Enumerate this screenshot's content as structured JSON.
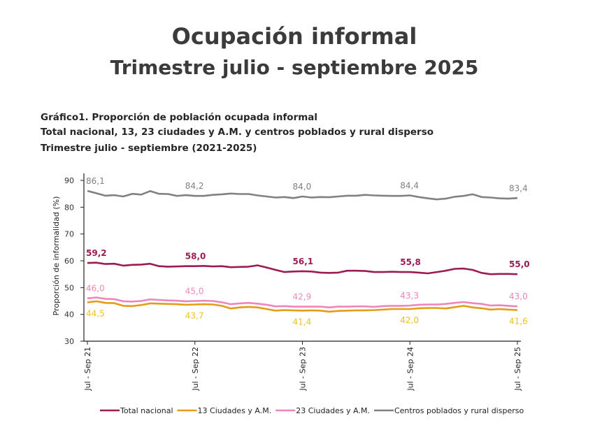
{
  "header": {
    "title": "Ocupación informal",
    "subtitle": "Trimestre julio - septiembre 2025"
  },
  "chart_data": {
    "type": "line",
    "title_lines": [
      "Gráfico1. Proporción de población ocupada informal",
      "Total nacional, 13, 23 ciudades y A.M. y centros poblados y rural disperso",
      "Trimestre julio - septiembre (2021-2025)"
    ],
    "ylabel": "Proporción de informalidad (%)",
    "xlabel": "",
    "ylim": [
      30,
      90
    ],
    "yticks": [
      30,
      40,
      50,
      60,
      70,
      80,
      90
    ],
    "xtick_labels": [
      "Jul - Sep 21",
      "Jul - Sep 22",
      "Jul - Sep 23",
      "Jul - Sep 24",
      "Jul - Sep 25"
    ],
    "xtick_indices": [
      0,
      12,
      24,
      36,
      48
    ],
    "grid": false,
    "legend_placement": "bottom",
    "series": [
      {
        "name": "Total nacional",
        "color": "#9b1b55",
        "label_color": "#9b1b55",
        "label_pos": "above",
        "bold": true,
        "values": [
          59.2,
          59.3,
          58.8,
          58.9,
          58.2,
          58.5,
          58.6,
          58.9,
          58.0,
          57.8,
          57.9,
          58.0,
          58.0,
          58.1,
          57.9,
          58.0,
          57.6,
          57.7,
          57.8,
          58.3,
          57.5,
          56.6,
          55.8,
          56.0,
          56.1,
          56.0,
          55.6,
          55.5,
          55.6,
          56.3,
          56.3,
          56.2,
          55.8,
          55.8,
          55.9,
          55.8,
          55.8,
          55.6,
          55.3,
          55.8,
          56.3,
          57.0,
          57.1,
          56.6,
          55.5,
          55.0,
          55.1,
          55.1,
          55.0
        ],
        "labels": [
          "59,2",
          "58,0",
          "56,1",
          "55,8",
          "55,0"
        ]
      },
      {
        "name": "13 Ciudades y A.M.",
        "color": "#e39d16",
        "label_color": "#efc21f",
        "label_pos": "below",
        "bold": false,
        "values": [
          44.5,
          44.9,
          44.3,
          44.2,
          43.2,
          43.1,
          43.5,
          44.1,
          44.0,
          43.9,
          43.8,
          43.6,
          43.7,
          43.8,
          43.7,
          43.2,
          42.2,
          42.6,
          42.8,
          42.6,
          42.0,
          41.4,
          41.6,
          41.5,
          41.4,
          41.5,
          41.4,
          41.0,
          41.3,
          41.4,
          41.5,
          41.5,
          41.6,
          41.8,
          42.0,
          42.0,
          42.0,
          42.3,
          42.4,
          42.4,
          42.2,
          42.7,
          43.2,
          42.6,
          42.3,
          41.8,
          42.0,
          41.8,
          41.6
        ],
        "labels": [
          "44,5",
          "43,7",
          "41,4",
          "42,0",
          "41,6"
        ]
      },
      {
        "name": "23 Ciudades y A.M.",
        "color": "#ee86bb",
        "label_color": "#ee86bb",
        "label_pos": "above",
        "bold": false,
        "values": [
          46.0,
          46.3,
          45.8,
          45.7,
          44.9,
          44.8,
          45.0,
          45.6,
          45.4,
          45.2,
          45.1,
          44.9,
          45.0,
          45.1,
          45.0,
          44.5,
          43.8,
          44.1,
          44.3,
          44.0,
          43.6,
          43.0,
          43.1,
          42.9,
          42.9,
          42.9,
          42.9,
          42.6,
          42.9,
          42.9,
          43.0,
          43.0,
          42.8,
          43.1,
          43.2,
          43.2,
          43.3,
          43.6,
          43.7,
          43.7,
          43.9,
          44.3,
          44.6,
          44.2,
          43.9,
          43.3,
          43.4,
          43.2,
          43.0
        ],
        "labels": [
          "46,0",
          "45,0",
          "42,9",
          "43,3",
          "43,0"
        ]
      },
      {
        "name": "Centros poblados y rural disperso",
        "color": "#818181",
        "label_color": "#818181",
        "label_pos": "above",
        "bold": false,
        "values": [
          86.1,
          85.2,
          84.3,
          84.5,
          84.0,
          85.0,
          84.7,
          86.0,
          85.0,
          84.9,
          84.2,
          84.5,
          84.2,
          84.2,
          84.6,
          84.8,
          85.1,
          84.9,
          84.9,
          84.4,
          84.0,
          83.6,
          83.8,
          83.4,
          84.0,
          83.6,
          83.8,
          83.7,
          84.0,
          84.3,
          84.3,
          84.6,
          84.4,
          84.3,
          84.2,
          84.2,
          84.4,
          83.8,
          83.3,
          82.9,
          83.2,
          83.9,
          84.2,
          84.8,
          83.8,
          83.6,
          83.3,
          83.2,
          83.4
        ],
        "labels": [
          "86,1",
          "84,2",
          "84,0",
          "84,4",
          "83,4"
        ]
      }
    ]
  }
}
